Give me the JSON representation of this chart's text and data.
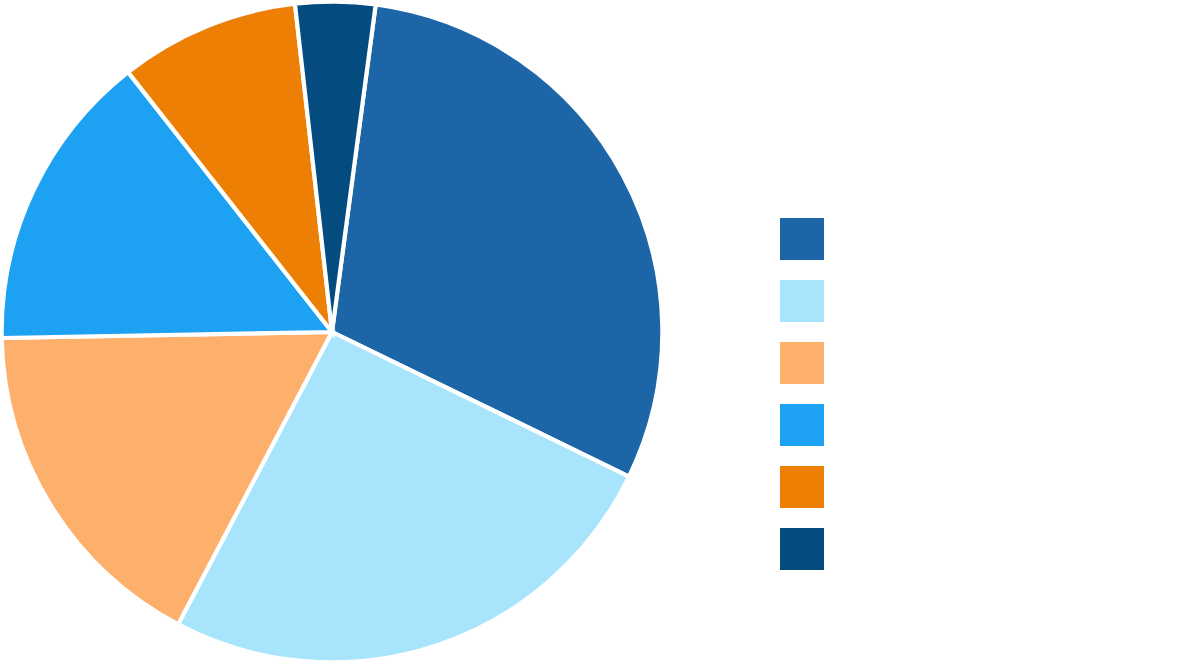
{
  "chart_data": {
    "type": "pie",
    "categories": [
      null,
      null,
      null,
      null,
      null,
      null
    ],
    "values": [
      30.1,
      25.5,
      17.0,
      14.7,
      8.8,
      3.9
    ],
    "colors": [
      "#1c66a8",
      "#a8e4fc",
      "#fdb06c",
      "#1da1f2",
      "#ec7f04",
      "#044b7f"
    ]
  }
}
